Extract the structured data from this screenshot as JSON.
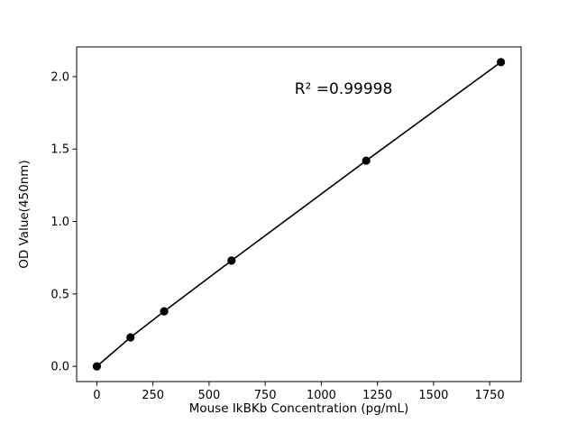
{
  "chart_data": {
    "type": "scatter",
    "title": "",
    "xlabel": "Mouse IkBKb Concentration (pg/mL)",
    "ylabel": "OD Value(450nm)",
    "annotation": "R² =0.99998",
    "x": [
      0,
      150,
      300,
      600,
      1200,
      1800
    ],
    "y": [
      0.0,
      0.2,
      0.38,
      0.73,
      1.42,
      2.1
    ],
    "xlim": [
      -90,
      1890
    ],
    "ylim": [
      -0.105,
      2.205
    ],
    "x_ticks": [
      0,
      250,
      500,
      750,
      1000,
      1250,
      1500,
      1750
    ],
    "x_tick_labels": [
      "0",
      "250",
      "500",
      "750",
      "1000",
      "1250",
      "1500",
      "1750"
    ],
    "y_ticks": [
      0.0,
      0.5,
      1.0,
      1.5,
      2.0
    ],
    "y_tick_labels": [
      "0.0",
      "0.5",
      "1.0",
      "1.5",
      "2.0"
    ],
    "grid": false,
    "legend": "none",
    "line": true,
    "line_color": "#000000",
    "marker_color": "#000000",
    "background_color": "#ffffff"
  }
}
